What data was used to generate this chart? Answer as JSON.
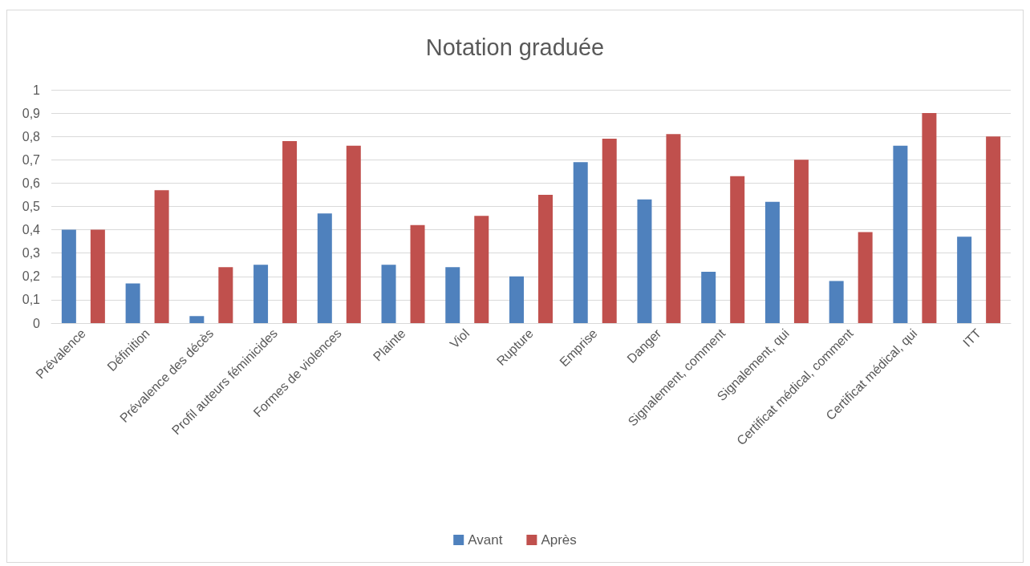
{
  "chart_data": {
    "type": "bar",
    "title": "Notation graduée",
    "categories": [
      "Prévalence",
      "Définition",
      "Prévalence des décès",
      "Profil auteurs féminicides",
      "Formes de violences",
      "Plainte",
      "Viol",
      "Rupture",
      "Emprise",
      "Danger",
      "Signalement, comment",
      "Signalement, qui",
      "Certificat médical, comment",
      "Certificat médical, qui",
      "ITT"
    ],
    "series": [
      {
        "name": "Avant",
        "color": "#4f81bd",
        "values": [
          0.4,
          0.17,
          0.03,
          0.25,
          0.47,
          0.25,
          0.24,
          0.2,
          0.69,
          0.53,
          0.22,
          0.52,
          0.18,
          0.76,
          0.37
        ]
      },
      {
        "name": "Après",
        "color": "#c0504d",
        "values": [
          0.4,
          0.57,
          0.24,
          0.78,
          0.76,
          0.42,
          0.46,
          0.55,
          0.79,
          0.81,
          0.63,
          0.7,
          0.39,
          0.9,
          0.8
        ]
      }
    ],
    "ylim": [
      0,
      1
    ],
    "yticks": [
      0,
      {
        "value": 0.1,
        "label": "0,1"
      },
      {
        "value": 0.2,
        "label": "0,2"
      },
      {
        "value": 0.3,
        "label": "0,3"
      },
      {
        "value": 0.4,
        "label": "0,4"
      },
      {
        "value": 0.5,
        "label": "0,5"
      },
      {
        "value": 0.6,
        "label": "0,6"
      },
      {
        "value": 0.7,
        "label": "0,7"
      },
      {
        "value": 0.8,
        "label": "0,8"
      },
      {
        "value": 0.9,
        "label": "0,9"
      },
      1
    ],
    "grid": "y",
    "legend": "bottom"
  }
}
